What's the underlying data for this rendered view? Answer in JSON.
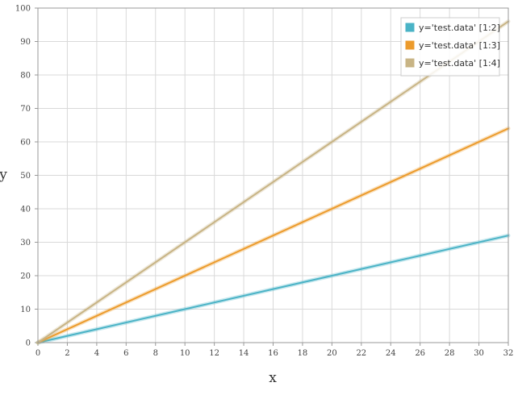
{
  "chart_data": {
    "type": "line",
    "xlabel": "x",
    "ylabel": "y",
    "xlim": [
      0,
      32
    ],
    "ylim": [
      0,
      100
    ],
    "xticks": [
      0,
      2,
      4,
      6,
      8,
      10,
      12,
      14,
      16,
      18,
      20,
      22,
      24,
      26,
      28,
      30,
      32
    ],
    "yticks": [
      0,
      10,
      20,
      30,
      40,
      50,
      60,
      70,
      80,
      90,
      100
    ],
    "grid": true,
    "legend_position": "top-right",
    "series": [
      {
        "name": "y='test.data' [1:2]",
        "color": "#4ab3c6",
        "x": [
          0,
          32
        ],
        "y": [
          0,
          32
        ]
      },
      {
        "name": "y='test.data' [1:3]",
        "color": "#ec9b2c",
        "x": [
          0,
          32
        ],
        "y": [
          0,
          64
        ]
      },
      {
        "name": "y='test.data' [1:4]",
        "color": "#c8b485",
        "x": [
          0,
          32
        ],
        "y": [
          0,
          96
        ]
      }
    ]
  }
}
